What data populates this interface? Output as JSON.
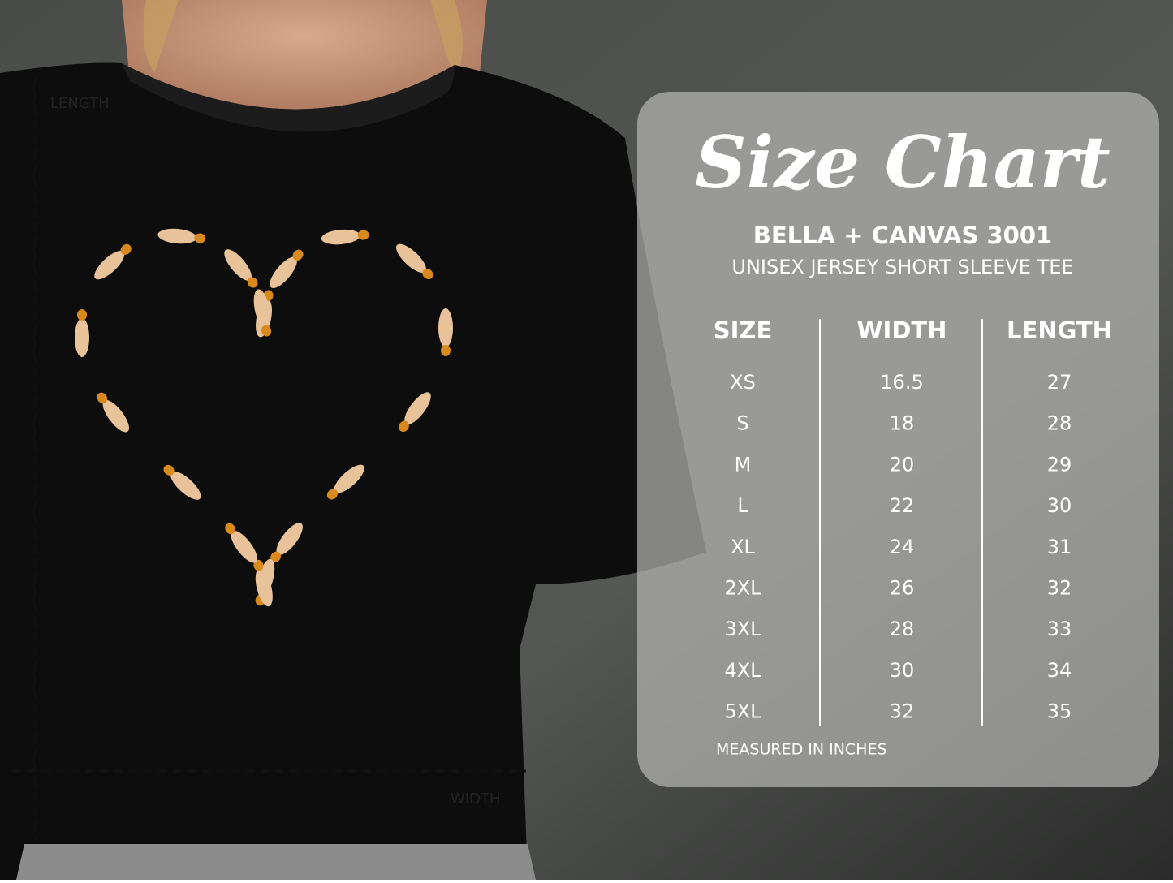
{
  "shirt": {
    "length_label": "LENGTH",
    "width_label": "WIDTH"
  },
  "panel": {
    "title": "Size Chart",
    "brand": "BELLA + CANVAS 3001",
    "product": "UNISEX JERSEY SHORT SLEEVE TEE",
    "table": {
      "header": [
        "SIZE",
        "WIDTH",
        "LENGTH"
      ],
      "rows": [
        [
          "XS",
          "16.5",
          "27"
        ],
        [
          "S",
          "18",
          "28"
        ],
        [
          "M",
          "20",
          "29"
        ],
        [
          "L",
          "22",
          "30"
        ],
        [
          "XL",
          "24",
          "31"
        ],
        [
          "2XL",
          "26",
          "32"
        ],
        [
          "3XL",
          "28",
          "33"
        ],
        [
          "4XL",
          "30",
          "34"
        ],
        [
          "5XL",
          "32",
          "35"
        ]
      ]
    },
    "note": "MEASURED IN INCHES"
  }
}
